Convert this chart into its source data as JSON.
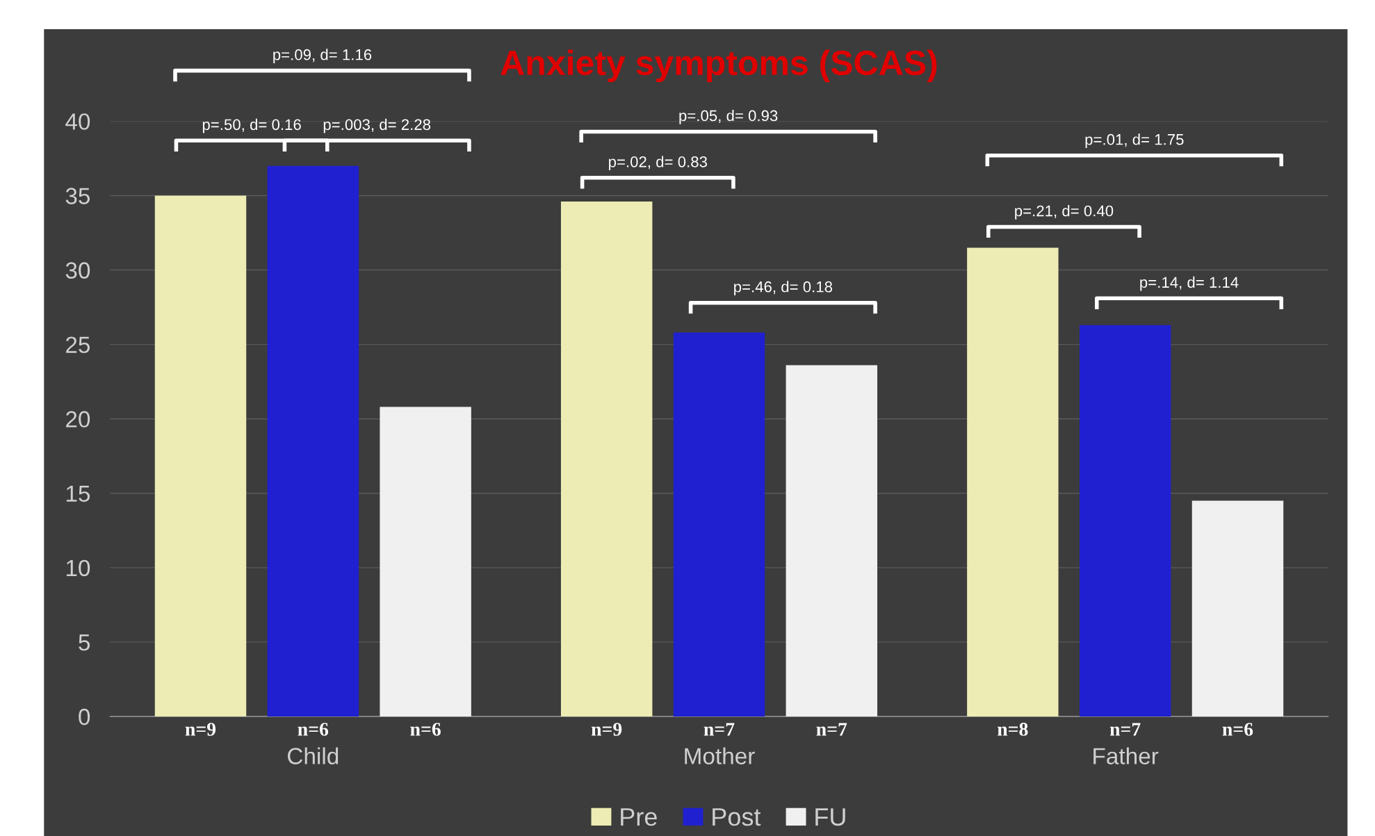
{
  "chart_data": {
    "type": "bar",
    "title": "Anxiety symptoms (SCAS)",
    "categories": [
      "Child",
      "Mother",
      "Father"
    ],
    "series": [
      {
        "name": "Pre",
        "color": "#ececb4",
        "values": [
          35.0,
          34.6,
          31.5
        ]
      },
      {
        "name": "Post",
        "color": "#2020d0",
        "values": [
          37.0,
          25.8,
          26.3
        ]
      },
      {
        "name": "FU",
        "color": "#f0f0f0",
        "values": [
          20.8,
          23.6,
          14.5
        ]
      }
    ],
    "ylim": [
      0,
      40
    ],
    "yticks": [
      0,
      5,
      10,
      15,
      20,
      25,
      30,
      35,
      40
    ],
    "grid": "y",
    "legend": "bottom",
    "annotations": [
      "p=.09, d= 1.16",
      "p=.50, d= 0.16",
      "p=.003, d= 2.28",
      "p=.05, d= 0.93",
      "p=.02, d= 0.83",
      "p=.46, d= 0.18",
      "p=.01, d= 1.75",
      "p=.21, d= 0.40",
      "p=.14, d= 1.14",
      "n=9",
      "n=6",
      "n=6",
      "n=9",
      "n=7",
      "n=7",
      "n=8",
      "n=7",
      "n=6"
    ]
  }
}
